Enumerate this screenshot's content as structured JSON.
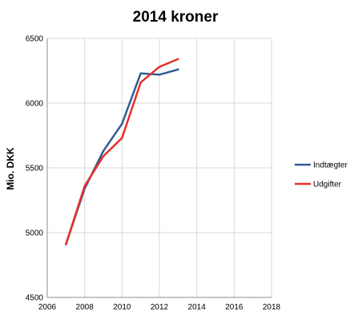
{
  "chart_data": {
    "type": "line",
    "title": "2014 kroner",
    "xlabel": "",
    "ylabel": "Mio. DKK",
    "xlim": [
      2006,
      2018
    ],
    "ylim": [
      4500,
      6500
    ],
    "x_ticks": [
      2006,
      2008,
      2010,
      2012,
      2014,
      2016,
      2018
    ],
    "y_ticks": [
      4500,
      5000,
      5500,
      6000,
      6500
    ],
    "grid": true,
    "legend_position": "right",
    "series": [
      {
        "name": "Indtægter",
        "color": "#2f5d95",
        "x": [
          2007,
          2008,
          2009,
          2010,
          2011,
          2012,
          2013
        ],
        "y": [
          4910,
          5340,
          5630,
          5840,
          6230,
          6220,
          6260
        ]
      },
      {
        "name": "Udgifter",
        "color": "#e8302a",
        "x": [
          2007,
          2008,
          2009,
          2010,
          2011,
          2012,
          2013
        ],
        "y": [
          4910,
          5360,
          5590,
          5730,
          6160,
          6280,
          6340
        ]
      }
    ]
  }
}
